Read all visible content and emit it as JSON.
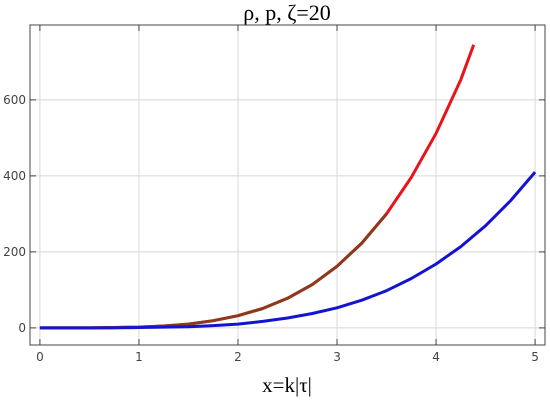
{
  "chart_data": {
    "type": "line",
    "title": "ρ, p, ζ=20",
    "x_label": "x=k|τ|",
    "xlim": [
      -0.1,
      5.1
    ],
    "ylim": [
      -45,
      797
    ],
    "xticks": [
      0,
      1,
      2,
      3,
      4,
      5
    ],
    "yticks": [
      0,
      200,
      400,
      600
    ],
    "grid": true,
    "series": [
      {
        "color": "#e8141a",
        "x": [
          0,
          0.25,
          0.5,
          0.75,
          1,
          1.25,
          1.5,
          1.75,
          2,
          2.25,
          2.5,
          2.75,
          3,
          3.25,
          3.5,
          3.75,
          4,
          4.25,
          4.38
        ],
        "values": [
          0,
          0,
          0,
          1,
          2,
          5,
          10,
          19,
          32,
          51,
          78,
          114,
          162,
          223,
          300,
          396,
          512,
          653,
          745
        ]
      },
      {
        "color": "#8c3a1c",
        "x": [
          0,
          0.25,
          0.5,
          0.75,
          1,
          1.25,
          1.5,
          1.75,
          2,
          2.25,
          2.5,
          2.75,
          3,
          3.25,
          3.5
        ],
        "values": [
          0,
          0,
          0,
          1,
          2,
          5,
          10,
          19,
          32,
          51,
          78,
          114,
          162,
          223,
          300
        ]
      },
      {
        "color": "#1414d0",
        "x": [
          0,
          0.25,
          0.5,
          0.75,
          1,
          1.25,
          1.5,
          1.75,
          2,
          2.25,
          2.5,
          2.75,
          3,
          3.25,
          3.5,
          3.75,
          4,
          4.25,
          4.5,
          4.75,
          5
        ],
        "values": [
          0,
          0,
          0,
          0,
          1,
          2,
          3,
          6,
          10,
          17,
          26,
          38,
          53,
          73,
          98,
          130,
          168,
          214,
          269,
          334,
          410
        ]
      }
    ]
  }
}
